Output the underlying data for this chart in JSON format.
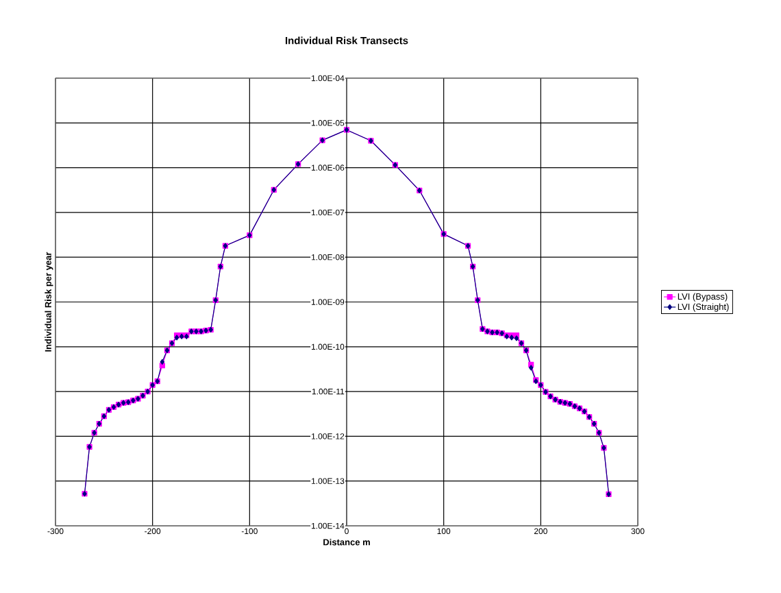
{
  "chart_data": {
    "type": "line",
    "title": "Individual Risk Transects",
    "xlabel": "Distance m",
    "ylabel": "Individual Risk per year",
    "x": [
      -270,
      -265,
      -260,
      -255,
      -250,
      -245,
      -240,
      -235,
      -230,
      -225,
      -220,
      -215,
      -210,
      -205,
      -200,
      -195,
      -190,
      -185,
      -180,
      -175,
      -170,
      -165,
      -160,
      -155,
      -150,
      -145,
      -140,
      -135,
      -130,
      -125,
      -100,
      -75,
      -50,
      -25,
      0,
      25,
      50,
      75,
      100,
      125,
      130,
      135,
      140,
      145,
      150,
      155,
      160,
      165,
      170,
      175,
      180,
      185,
      190,
      195,
      200,
      205,
      210,
      215,
      220,
      225,
      230,
      235,
      240,
      245,
      250,
      255,
      260,
      265,
      270
    ],
    "series": [
      {
        "name": "LVI (Bypass)",
        "color": "#ff00ff",
        "marker": "square",
        "values": [
          5.2e-14,
          5.8e-13,
          1.2e-12,
          1.9e-12,
          2.8e-12,
          3.9e-12,
          4.5e-12,
          5.1e-12,
          5.6e-12,
          5.8e-12,
          6.3e-12,
          6.9e-12,
          8.1e-12,
          1e-11,
          1.4e-11,
          1.7e-11,
          3.8e-11,
          8.3e-11,
          1.2e-10,
          1.8e-10,
          1.8e-10,
          1.8e-10,
          2.2e-10,
          2.2e-10,
          2.2e-10,
          2.3e-10,
          2.4e-10,
          1.1e-09,
          6.2e-09,
          1.8e-08,
          3.1e-08,
          3.2e-07,
          1.2e-06,
          4.1e-06,
          7e-06,
          4e-06,
          1.15e-06,
          3.1e-07,
          3.3e-08,
          1.8e-08,
          6.2e-09,
          1.1e-09,
          2.5e-10,
          2.2e-10,
          2.1e-10,
          2.1e-10,
          2e-10,
          1.8e-10,
          1.8e-10,
          1.8e-10,
          1.2e-10,
          8.3e-11,
          4e-11,
          1.8e-11,
          1.4e-11,
          9.8e-12,
          7.8e-12,
          6.6e-12,
          5.9e-12,
          5.6e-12,
          5.3e-12,
          4.7e-12,
          4.2e-12,
          3.6e-12,
          2.7e-12,
          1.9e-12,
          1.2e-12,
          5.5e-13,
          5.1e-14
        ]
      },
      {
        "name": "LVI (Straight)",
        "color": "#000080",
        "marker": "diamond",
        "values": [
          5.2e-14,
          5.8e-13,
          1.2e-12,
          1.9e-12,
          2.8e-12,
          3.9e-12,
          4.5e-12,
          5.1e-12,
          5.6e-12,
          5.8e-12,
          6.3e-12,
          6.9e-12,
          8.1e-12,
          1e-11,
          1.4e-11,
          1.7e-11,
          4.6e-11,
          8.3e-11,
          1.2e-10,
          1.6e-10,
          1.7e-10,
          1.7e-10,
          2.2e-10,
          2.2e-10,
          2.2e-10,
          2.3e-10,
          2.4e-10,
          1.1e-09,
          6.2e-09,
          1.8e-08,
          3.1e-08,
          3.2e-07,
          1.2e-06,
          4.1e-06,
          7e-06,
          4e-06,
          1.15e-06,
          3.1e-07,
          3.3e-08,
          1.8e-08,
          6.2e-09,
          1.1e-09,
          2.5e-10,
          2.2e-10,
          2.1e-10,
          2.1e-10,
          2e-10,
          1.7e-10,
          1.6e-10,
          1.55e-10,
          1.2e-10,
          8.3e-11,
          3.4e-11,
          1.7e-11,
          1.4e-11,
          9.8e-12,
          7.8e-12,
          6.6e-12,
          5.9e-12,
          5.6e-12,
          5.3e-12,
          4.7e-12,
          4.2e-12,
          3.6e-12,
          2.7e-12,
          1.9e-12,
          1.2e-12,
          5.5e-13,
          5.1e-14
        ]
      }
    ],
    "xlim": [
      -300,
      300
    ],
    "xticks": [
      -300,
      -200,
      -100,
      0,
      100,
      200,
      300
    ],
    "ylim": [
      1e-14,
      0.0001
    ],
    "yticks": [
      {
        "value": 1e-14,
        "label": "1.00E-14"
      },
      {
        "value": 1e-13,
        "label": "1.00E-13"
      },
      {
        "value": 1e-12,
        "label": "1.00E-12"
      },
      {
        "value": 1e-11,
        "label": "1.00E-11"
      },
      {
        "value": 1e-10,
        "label": "1.00E-10"
      },
      {
        "value": 1e-09,
        "label": "1.00E-09"
      },
      {
        "value": 1e-08,
        "label": "1.00E-08"
      },
      {
        "value": 1e-07,
        "label": "1.00E-07"
      },
      {
        "value": 1e-06,
        "label": "1.00E-06"
      },
      {
        "value": 1e-05,
        "label": "1.00E-05"
      },
      {
        "value": 0.0001,
        "label": "1.00E-04"
      }
    ],
    "log": "y",
    "grid": true,
    "legend": "right",
    "line_style": "solid"
  }
}
